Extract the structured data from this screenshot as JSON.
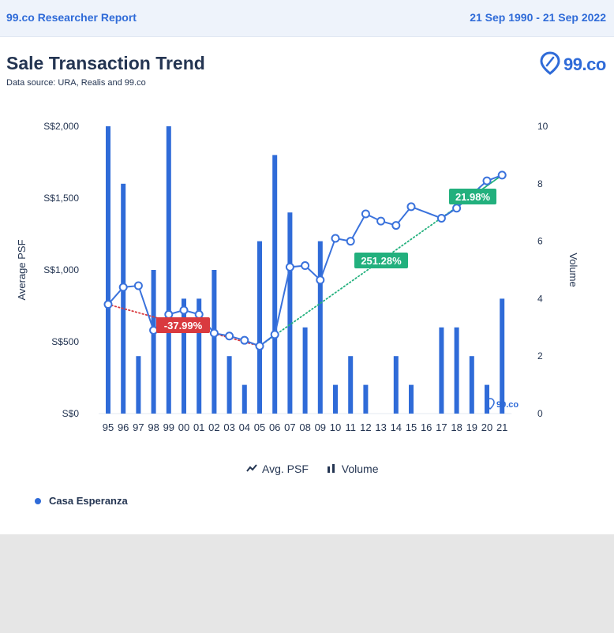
{
  "header": {
    "report_name": "99.co Researcher Report",
    "date_range": "21 Sep 1990 - 21 Sep 2022"
  },
  "card": {
    "title": "Sale Transaction Trend",
    "source": "Data source: URA, Realis and 99.co",
    "logo_text": "99.co",
    "watermark_text": "99.co"
  },
  "legend": {
    "avg_psf": "Avg. PSF",
    "volume": "Volume",
    "series_name": "Casa Esperanza"
  },
  "colors": {
    "bar": "#2f6bd8",
    "line": "#3a72dc",
    "down": "#d93a3f",
    "up": "#22b07d",
    "axis_text": "#243552"
  },
  "chart_data": {
    "type": "bar",
    "categories": [
      "95",
      "96",
      "97",
      "98",
      "99",
      "00",
      "01",
      "02",
      "03",
      "04",
      "05",
      "06",
      "07",
      "08",
      "09",
      "10",
      "11",
      "12",
      "13",
      "14",
      "15",
      "16",
      "17",
      "18",
      "19",
      "20",
      "21"
    ],
    "yaxis_left": {
      "label": "Average PSF",
      "ticks": [
        "S$0",
        "S$500",
        "S$1,000",
        "S$1,500",
        "S$2,000"
      ],
      "ylim": [
        0,
        2000
      ]
    },
    "yaxis_right": {
      "label": "Volume",
      "ticks": [
        "0",
        "2",
        "4",
        "6",
        "8",
        "10"
      ],
      "ylim": [
        0,
        10
      ]
    },
    "series": [
      {
        "name": "Volume",
        "type": "bar",
        "axis": "right",
        "values": [
          10,
          8,
          2,
          5,
          10,
          4,
          4,
          5,
          2,
          1,
          6,
          9,
          7,
          3,
          6,
          1,
          2,
          1,
          0,
          2,
          1,
          0,
          3,
          3,
          2,
          1,
          4
        ]
      },
      {
        "name": "Avg. PSF",
        "type": "line",
        "axis": "left",
        "values": [
          760,
          880,
          890,
          580,
          690,
          720,
          690,
          560,
          540,
          510,
          470,
          550,
          1020,
          1030,
          930,
          1220,
          1200,
          1390,
          1340,
          1310,
          1440,
          null,
          1360,
          1430,
          null,
          1620,
          1660
        ]
      }
    ],
    "annotations": [
      {
        "text": "-37.99%",
        "from": "95",
        "to": "05",
        "trend": "down"
      },
      {
        "text": "251.28%",
        "from": "05",
        "to": "21",
        "trend": "up"
      },
      {
        "text": "21.98%",
        "from": "17",
        "to": "21",
        "trend": "up"
      }
    ],
    "grid": false,
    "legend_position": "bottom"
  }
}
